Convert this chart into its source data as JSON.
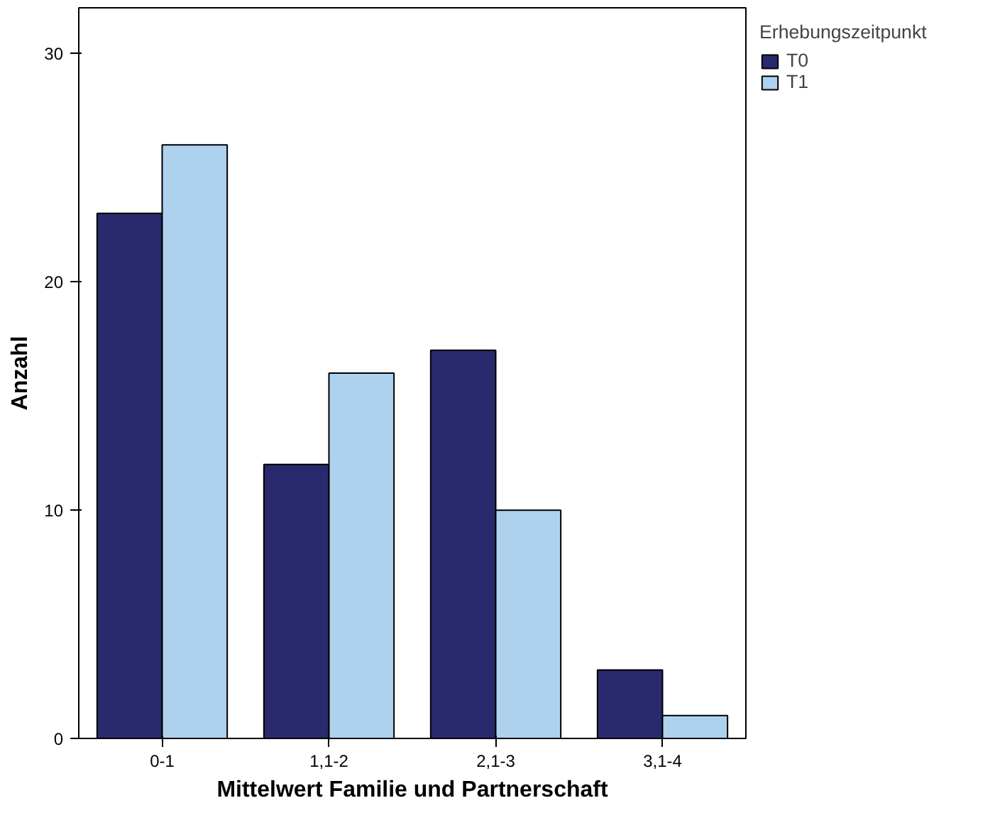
{
  "chart_data": {
    "type": "bar",
    "xlabel": "Mittelwert Familie und Partnerschaft",
    "ylabel": "Anzahl",
    "legend_title": "Erhebungszeitpunkt",
    "categories": [
      "0-1",
      "1,1-2",
      "2,1-3",
      "3,1-4"
    ],
    "series": [
      {
        "name": "T0",
        "color": "#29296e",
        "values": [
          23,
          12,
          17,
          3
        ]
      },
      {
        "name": "T1",
        "color": "#aed1ee",
        "values": [
          26,
          16,
          10,
          1
        ]
      }
    ],
    "ylim": [
      0,
      32
    ],
    "yticks": [
      0,
      10,
      20,
      30
    ],
    "grid": false,
    "legend": "top right"
  }
}
